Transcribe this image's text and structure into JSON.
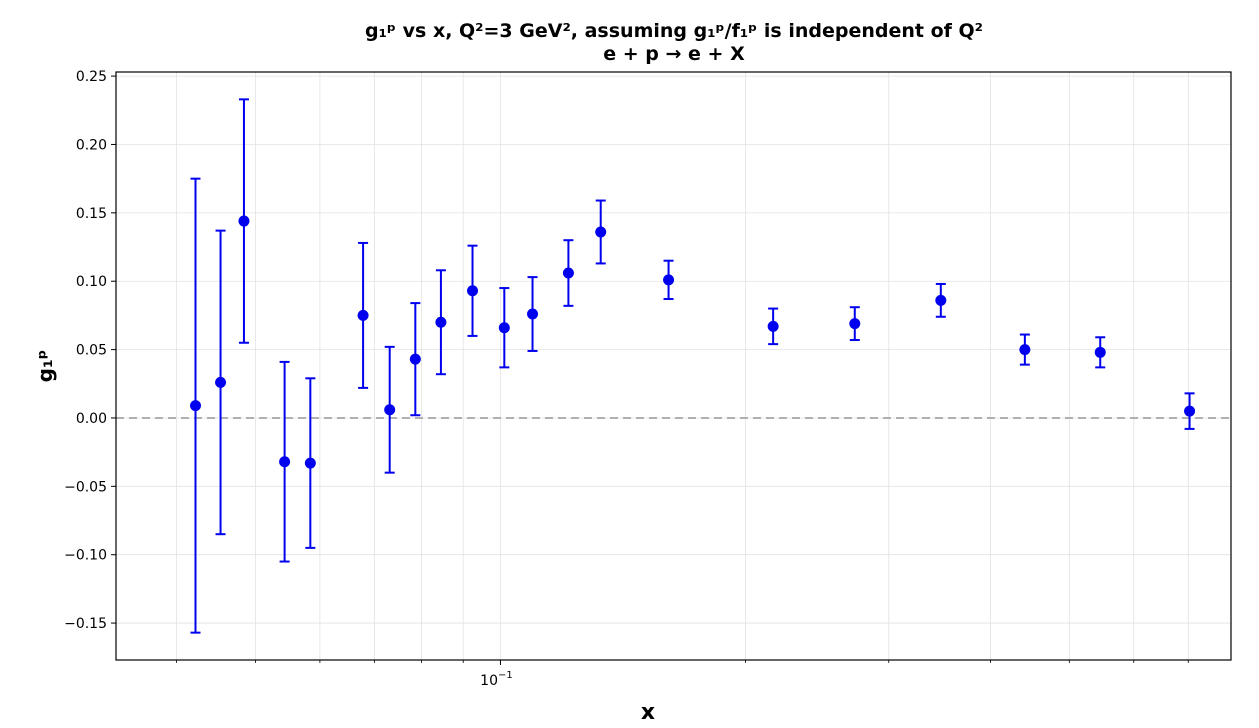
{
  "chart_data": {
    "type": "scatter",
    "title_line1": "g₁ᵖ vs x, Q²=3 GeV²,  assuming g₁ᵖ/f₁ᵖ is independent of Q²",
    "title_line2": "e + p → e + X",
    "xlabel": "x",
    "ylabel": "g₁ᵖ",
    "xscale": "log",
    "xlim": [
      0.0337,
      0.79
    ],
    "ylim": [
      -0.177,
      0.253
    ],
    "grid": true,
    "reference_line": {
      "y": 0,
      "style": "dashed",
      "color": "#b0b0b0"
    },
    "marker_color": "#0000ee",
    "y_ticks": [
      -0.15,
      -0.1,
      -0.05,
      0.0,
      0.05,
      0.1,
      0.15,
      0.2,
      0.25
    ],
    "y_tick_labels": [
      "−0.15",
      "−0.10",
      "−0.05",
      "0.00",
      "0.05",
      "0.10",
      "0.15",
      "0.20",
      "0.25"
    ],
    "x_major_tick": 0.1,
    "x_major_tick_label": "10",
    "x_major_tick_exponent": "−1",
    "x_minor_ticks": [
      0.04,
      0.05,
      0.06,
      0.07,
      0.08,
      0.09,
      0.2,
      0.3,
      0.4,
      0.5,
      0.6,
      0.7
    ],
    "points": [
      {
        "x": 0.0422,
        "y": 0.009,
        "err": 0.166
      },
      {
        "x": 0.0453,
        "y": 0.026,
        "err": 0.111
      },
      {
        "x": 0.0484,
        "y": 0.144,
        "err": 0.089
      },
      {
        "x": 0.0543,
        "y": -0.032,
        "err": 0.073
      },
      {
        "x": 0.0584,
        "y": -0.033,
        "err": 0.062
      },
      {
        "x": 0.0678,
        "y": 0.075,
        "err": 0.053
      },
      {
        "x": 0.0731,
        "y": 0.006,
        "err": 0.046
      },
      {
        "x": 0.0786,
        "y": 0.043,
        "err": 0.041
      },
      {
        "x": 0.0845,
        "y": 0.07,
        "err": 0.038
      },
      {
        "x": 0.0924,
        "y": 0.093,
        "err": 0.033
      },
      {
        "x": 0.1011,
        "y": 0.066,
        "err": 0.029
      },
      {
        "x": 0.1095,
        "y": 0.076,
        "err": 0.027
      },
      {
        "x": 0.1212,
        "y": 0.106,
        "err": 0.024
      },
      {
        "x": 0.1328,
        "y": 0.136,
        "err": 0.023
      },
      {
        "x": 0.1609,
        "y": 0.101,
        "err": 0.014
      },
      {
        "x": 0.2163,
        "y": 0.067,
        "err": 0.013
      },
      {
        "x": 0.2725,
        "y": 0.069,
        "err": 0.012
      },
      {
        "x": 0.3476,
        "y": 0.086,
        "err": 0.012
      },
      {
        "x": 0.4409,
        "y": 0.05,
        "err": 0.011
      },
      {
        "x": 0.5457,
        "y": 0.048,
        "err": 0.011
      },
      {
        "x": 0.7026,
        "y": 0.005,
        "err": 0.013
      }
    ]
  }
}
